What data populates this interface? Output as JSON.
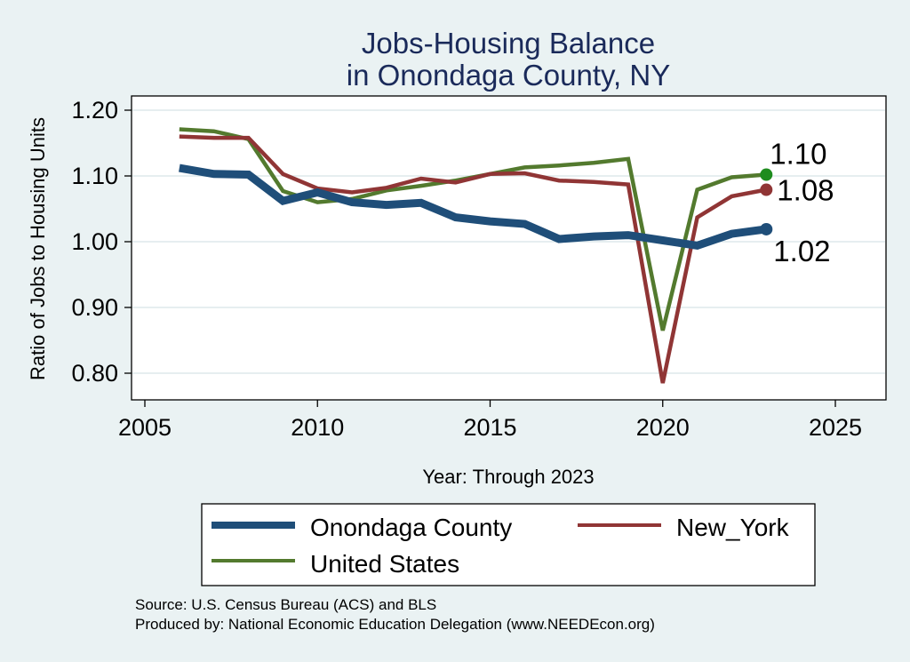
{
  "chart_data": {
    "type": "line",
    "title": [
      "Jobs-Housing Balance",
      "in Onondaga County, NY"
    ],
    "xlabel": "Year: Through 2023",
    "ylabel": "Ratio of Jobs to Housing Units",
    "xlim": [
      2005,
      2025
    ],
    "ylim": [
      0.78,
      1.22
    ],
    "xticks": [
      2005,
      2010,
      2015,
      2020,
      2025
    ],
    "xtick_labels": [
      "2005",
      "2010",
      "2015",
      "2020",
      "2025"
    ],
    "yticks": [
      0.8,
      0.9,
      1.0,
      1.1,
      1.2
    ],
    "ytick_labels": [
      "0.80",
      "0.90",
      "1.00",
      "1.10",
      "1.20"
    ],
    "grid": true,
    "legend_position": "bottom",
    "series": [
      {
        "name": "Onondaga County",
        "color": "#1f4e79",
        "x": [
          2006,
          2007,
          2008,
          2009,
          2010,
          2011,
          2012,
          2013,
          2014,
          2015,
          2016,
          2017,
          2018,
          2019,
          2020,
          2021,
          2022,
          2023
        ],
        "y": [
          1.112,
          1.103,
          1.102,
          1.062,
          1.075,
          1.06,
          1.056,
          1.059,
          1.037,
          1.031,
          1.027,
          1.004,
          1.008,
          1.01,
          1.002,
          0.994,
          1.012,
          1.019
        ],
        "end_label": "1.02",
        "marker_color": "#1f4e79"
      },
      {
        "name": "New_York",
        "color": "#903535",
        "x": [
          2006,
          2007,
          2008,
          2009,
          2010,
          2011,
          2012,
          2013,
          2014,
          2015,
          2016,
          2017,
          2018,
          2019,
          2020,
          2021,
          2022,
          2023
        ],
        "y": [
          1.16,
          1.158,
          1.158,
          1.103,
          1.081,
          1.075,
          1.082,
          1.096,
          1.09,
          1.103,
          1.104,
          1.093,
          1.091,
          1.087,
          0.785,
          1.037,
          1.069,
          1.079
        ],
        "end_label": "1.08",
        "marker_color": "#903535"
      },
      {
        "name": "United States",
        "color": "#537a2e",
        "x": [
          2006,
          2007,
          2008,
          2009,
          2010,
          2011,
          2012,
          2013,
          2014,
          2015,
          2016,
          2017,
          2018,
          2019,
          2020,
          2021,
          2022,
          2023
        ],
        "y": [
          1.171,
          1.168,
          1.156,
          1.077,
          1.06,
          1.065,
          1.078,
          1.085,
          1.093,
          1.103,
          1.113,
          1.116,
          1.12,
          1.126,
          0.865,
          1.079,
          1.098,
          1.102
        ],
        "end_label": "1.10",
        "marker_color": "#1e8c1e"
      }
    ]
  },
  "notes": {
    "source": "Source: U.S. Census Bureau (ACS) and BLS",
    "produced_by": "Produced by: National Economic Education Delegation (www.NEEDEcon.org)"
  }
}
